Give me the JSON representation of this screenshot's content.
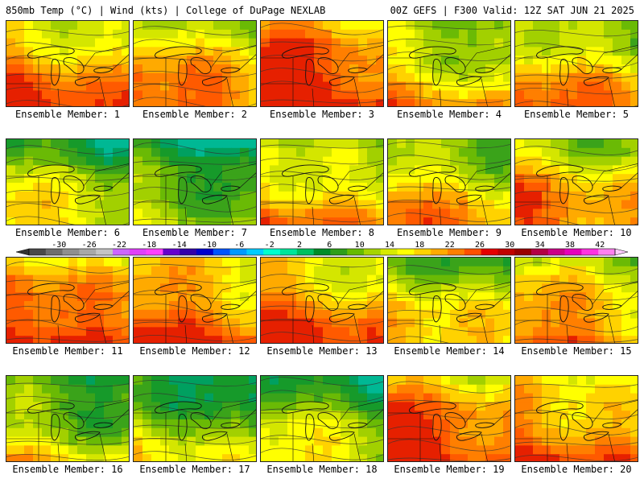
{
  "header": {
    "left": "850mb Temp (°C) | Wind (kts) | College of DuPage NEXLAB",
    "right": "00Z GEFS | F300 Valid: 12Z SAT JUN 21 2025"
  },
  "legend": {
    "ticks": [
      "-30",
      "-26",
      "-22",
      "-18",
      "-14",
      "-10",
      "-6",
      "-2",
      "2",
      "6",
      "10",
      "14",
      "18",
      "22",
      "26",
      "30",
      "34",
      "38",
      "42"
    ],
    "tick_values": [
      -30,
      -26,
      -22,
      -18,
      -14,
      -10,
      -6,
      -2,
      2,
      6,
      10,
      14,
      18,
      22,
      26,
      30,
      34,
      38,
      42
    ],
    "colors": [
      "#4a4a4a",
      "#6e6e6e",
      "#8f8f8f",
      "#a8a8a8",
      "#c4c4c4",
      "#cc66ff",
      "#e040fb",
      "#ff40ff",
      "#6600cc",
      "#3300aa",
      "#0000cc",
      "#0055ff",
      "#0099ff",
      "#00ccff",
      "#00ffcc",
      "#00e59a",
      "#00c060",
      "#008c28",
      "#2e9e1a",
      "#66bb00",
      "#a6d400",
      "#d8ea00",
      "#ffff00",
      "#ffd200",
      "#ffaa00",
      "#ff7f00",
      "#ff5000",
      "#e60000",
      "#c00000",
      "#990000",
      "#b30045",
      "#cc0088",
      "#e600bb",
      "#ff33e0",
      "#ff80f0"
    ]
  },
  "panels": [
    {
      "label": "Ensemble Member: 1",
      "warmth": 0.75
    },
    {
      "label": "Ensemble Member: 2",
      "warmth": 0.72
    },
    {
      "label": "Ensemble Member: 3",
      "warmth": 0.92
    },
    {
      "label": "Ensemble Member: 4",
      "warmth": 0.55
    },
    {
      "label": "Ensemble Member: 5",
      "warmth": 0.65
    },
    {
      "label": "Ensemble Member: 6",
      "warmth": 0.45
    },
    {
      "label": "Ensemble Member: 7",
      "warmth": 0.28
    },
    {
      "label": "Ensemble Member: 8",
      "warmth": 0.62
    },
    {
      "label": "Ensemble Member: 9",
      "warmth": 0.6
    },
    {
      "label": "Ensemble Member: 10",
      "warmth": 0.68
    },
    {
      "label": "Ensemble Member: 11",
      "warmth": 0.85
    },
    {
      "label": "Ensemble Member: 12",
      "warmth": 0.8
    },
    {
      "label": "Ensemble Member: 13",
      "warmth": 0.78
    },
    {
      "label": "Ensemble Member: 14",
      "warmth": 0.55
    },
    {
      "label": "Ensemble Member: 15",
      "warmth": 0.7
    },
    {
      "label": "Ensemble Member: 16",
      "warmth": 0.4
    },
    {
      "label": "Ensemble Member: 17",
      "warmth": 0.35
    },
    {
      "label": "Ensemble Member: 18",
      "warmth": 0.42
    },
    {
      "label": "Ensemble Member: 19",
      "warmth": 0.85
    },
    {
      "label": "Ensemble Member: 20",
      "warmth": 0.75
    }
  ]
}
